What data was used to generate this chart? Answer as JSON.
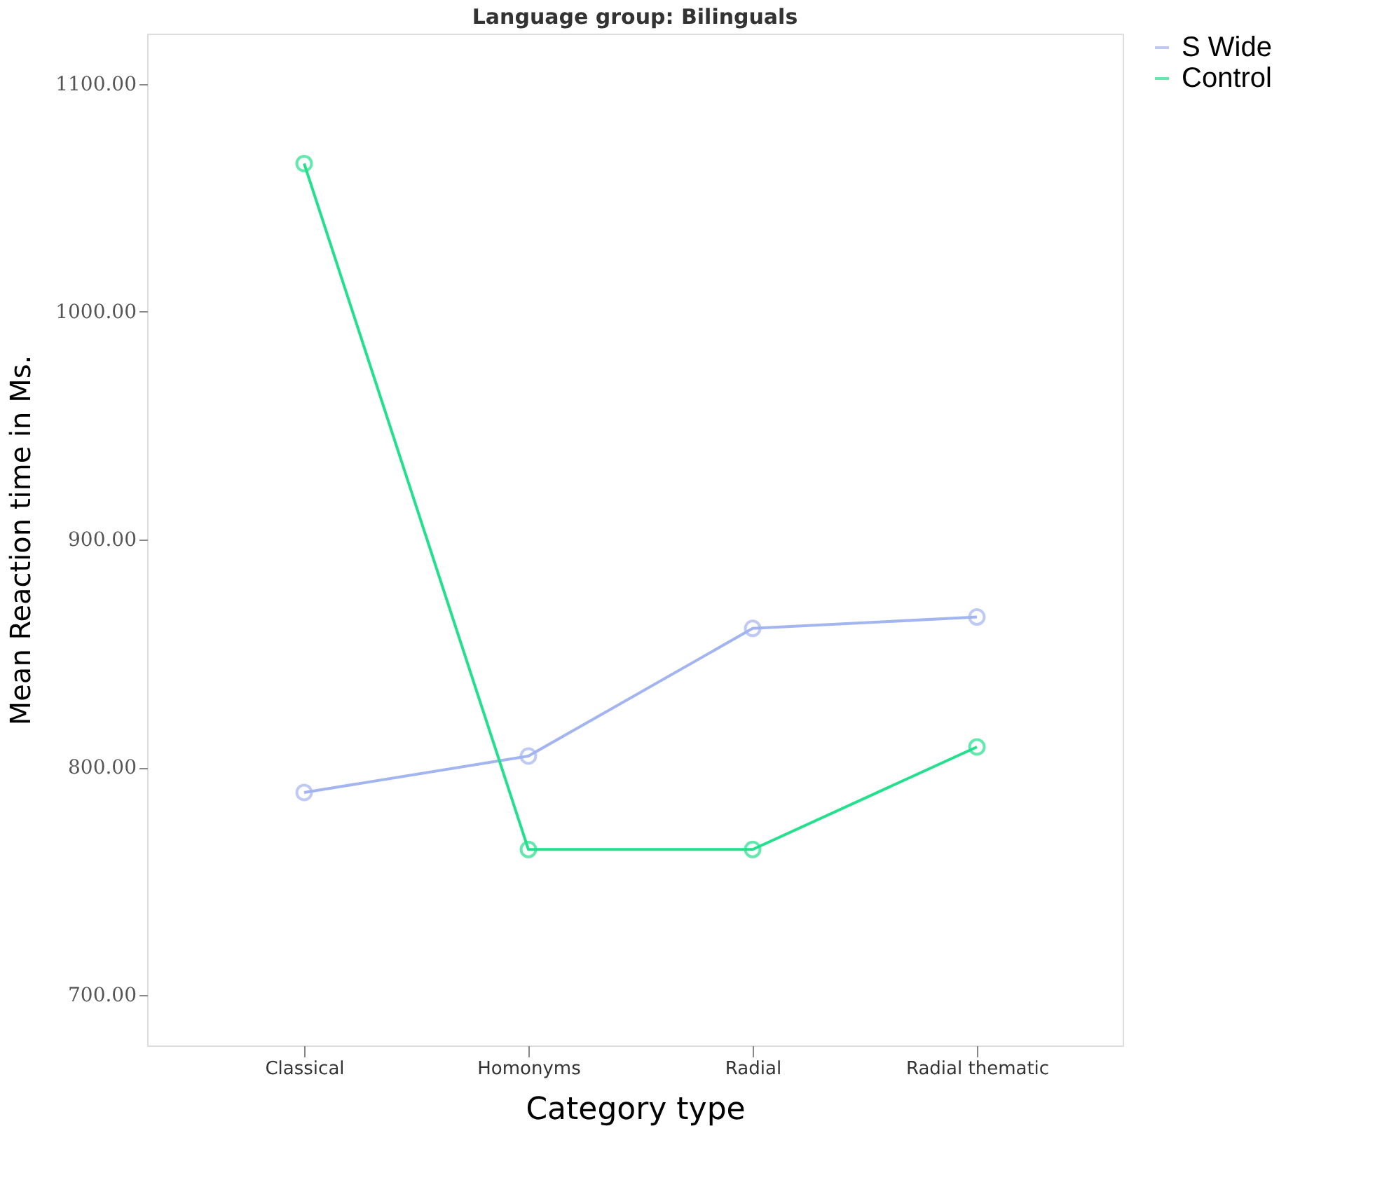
{
  "chart_data": {
    "type": "line",
    "title": "Language group: Bilinguals",
    "xlabel": "Category type",
    "ylabel": "Mean Reaction time in Ms.",
    "categories": [
      "Classical",
      "Homonyms",
      "Radial",
      "Radial thematic"
    ],
    "series": [
      {
        "name": "S Wide",
        "color": "#a3b5f0",
        "values": [
          789,
          805,
          861,
          866
        ]
      },
      {
        "name": "Control",
        "color": "#22e08c",
        "values": [
          1065,
          764,
          764,
          809
        ]
      }
    ],
    "ylim": [
      678,
      1122
    ],
    "yticks": [
      {
        "value": 700,
        "label": "700.00"
      },
      {
        "value": 800,
        "label": "800.00"
      },
      {
        "value": 900,
        "label": "900.00"
      },
      {
        "value": 1000,
        "label": "1000.00"
      },
      {
        "value": 1100,
        "label": "1100.00"
      }
    ],
    "marker": "circle",
    "line_style": "solid",
    "grid": false,
    "legend": "top right"
  }
}
